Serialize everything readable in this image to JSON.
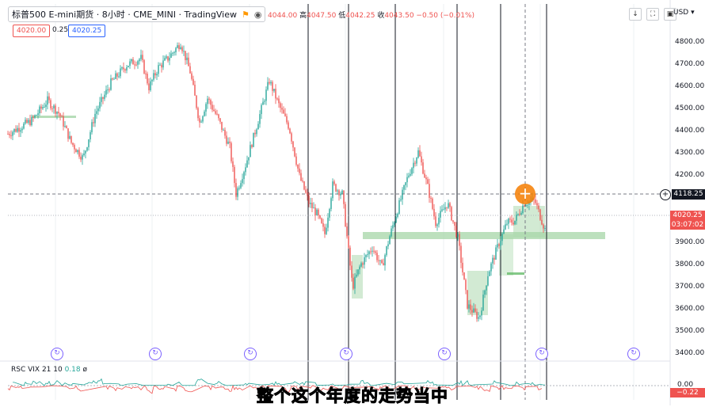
{
  "header": {
    "title": "标普500 E-mini期货 · 8小时 · CME_MINI · TradingView",
    "ohlc_text_parts": {
      "open_value": "4044.00",
      "high_label": "高",
      "high_value": "4047.50",
      "low_label": "低",
      "low_value": "4042.25",
      "close_label": "收",
      "close_value": "4043.50",
      "change": "−0.50 (−0.01%)"
    },
    "bid": "4020.00",
    "step": "0.25",
    "ask": "4020.25"
  },
  "currency": "USD",
  "price_axis": [
    "4800.00",
    "4700.00",
    "4600.00",
    "4500.00",
    "4400.00",
    "4300.00",
    "4200.00",
    "4100.00",
    "4000.00",
    "3900.00",
    "3800.00",
    "3700.00",
    "3600.00",
    "3500.00",
    "3400.00"
  ],
  "crosshair_price": "4118.25",
  "current_price": "4020.25",
  "countdown": "03:07:02",
  "indicator": {
    "label": "RSC VIX 21 10",
    "value": "0.18",
    "extra": "ø",
    "axis_zero": "0.00",
    "current": "−0.22"
  },
  "subtitle": "整个这个年度的走势当中",
  "colors": {
    "up": "#26a69a",
    "down": "#ef5350",
    "zone": "#a5d6a7",
    "accent": "#2962ff"
  },
  "chart_data": {
    "type": "candlestick",
    "price_range": [
      3400,
      4850
    ],
    "crosshair_level": 4118.25,
    "current_level": 4020.25,
    "support_zone_level": 3940
  }
}
